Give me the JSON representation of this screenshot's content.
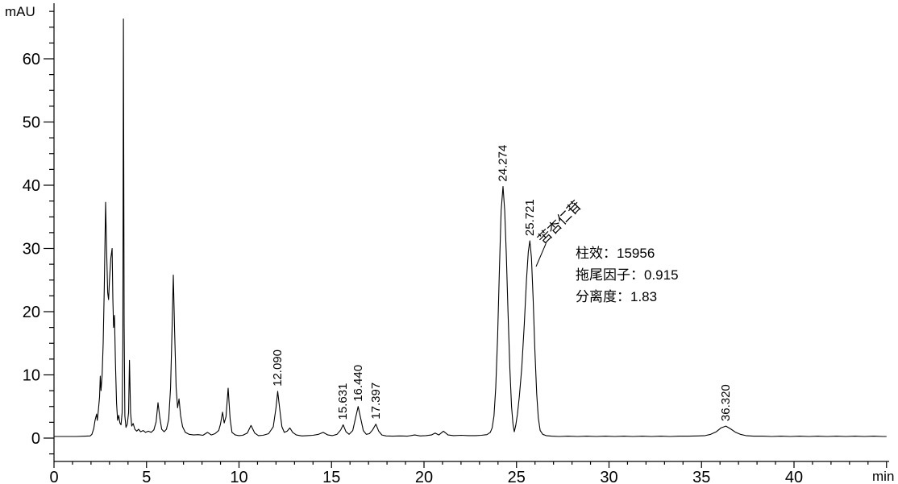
{
  "chart_data": {
    "type": "line",
    "subtype": "hplc-chromatogram",
    "xlabel": "min",
    "ylabel": "mAU",
    "x_ticks": [
      0,
      5,
      10,
      15,
      20,
      25,
      30,
      35,
      40
    ],
    "y_ticks": [
      0,
      10,
      20,
      30,
      40,
      50,
      60
    ],
    "x_minor_step": 1,
    "y_minor_step": 2.5,
    "xlim": [
      0,
      45.1
    ],
    "ylim": [
      -3.7,
      68.7
    ],
    "grid": false,
    "line_color": "#000000",
    "background_color": "#ffffff",
    "labeled_peaks": [
      {
        "label": "12.090",
        "t_min": 12.09,
        "height_mau": 7.4
      },
      {
        "label": "15.631",
        "t_min": 15.631,
        "height_mau": 2.1
      },
      {
        "label": "16.440",
        "t_min": 16.44,
        "height_mau": 5.0
      },
      {
        "label": "17.397",
        "t_min": 17.397,
        "height_mau": 2.2
      },
      {
        "label": "24.274",
        "t_min": 24.274,
        "height_mau": 39.8
      },
      {
        "label": "25.721",
        "t_min": 25.721,
        "height_mau": 31.2
      },
      {
        "label": "36.320",
        "t_min": 36.32,
        "height_mau": 1.9
      }
    ],
    "compound_annotation": {
      "name": "苦杏仁苷",
      "applies_to_peak": "25.721"
    },
    "stats_annotation": [
      "柱效：15956",
      "拖尾因子：0.915",
      "分离度：1.83"
    ],
    "trace": [
      [
        0,
        0.25
      ],
      [
        0.6,
        0.25
      ],
      [
        1.2,
        0.25
      ],
      [
        1.7,
        0.3
      ],
      [
        1.95,
        0.35
      ],
      [
        2.05,
        0.6
      ],
      [
        2.15,
        1.5
      ],
      [
        2.22,
        2.8
      ],
      [
        2.3,
        3.8
      ],
      [
        2.34,
        2.8
      ],
      [
        2.4,
        4.5
      ],
      [
        2.46,
        6.5
      ],
      [
        2.5,
        9.8
      ],
      [
        2.54,
        7.5
      ],
      [
        2.6,
        10
      ],
      [
        2.66,
        15
      ],
      [
        2.72,
        24
      ],
      [
        2.79,
        37.3
      ],
      [
        2.84,
        30
      ],
      [
        2.9,
        23
      ],
      [
        2.95,
        21.9
      ],
      [
        3.0,
        25
      ],
      [
        3.07,
        28.5
      ],
      [
        3.14,
        30
      ],
      [
        3.18,
        22
      ],
      [
        3.22,
        17.5
      ],
      [
        3.27,
        19.4
      ],
      [
        3.32,
        12
      ],
      [
        3.38,
        5.5
      ],
      [
        3.44,
        2.8
      ],
      [
        3.5,
        3.6
      ],
      [
        3.56,
        2.4
      ],
      [
        3.62,
        2.1
      ],
      [
        3.68,
        4
      ],
      [
        3.72,
        15
      ],
      [
        3.75,
        66.3
      ],
      [
        3.79,
        18
      ],
      [
        3.83,
        3.5
      ],
      [
        3.89,
        1.7
      ],
      [
        3.96,
        2.2
      ],
      [
        4.03,
        4
      ],
      [
        4.08,
        12.3
      ],
      [
        4.14,
        4
      ],
      [
        4.2,
        1.9
      ],
      [
        4.28,
        2.3
      ],
      [
        4.37,
        1.4
      ],
      [
        4.47,
        1.1
      ],
      [
        4.57,
        1.4
      ],
      [
        4.68,
        1.0
      ],
      [
        4.82,
        1.2
      ],
      [
        4.95,
        0.9
      ],
      [
        5.1,
        1.1
      ],
      [
        5.25,
        0.9
      ],
      [
        5.4,
        1.3
      ],
      [
        5.52,
        2.6
      ],
      [
        5.62,
        5.6
      ],
      [
        5.72,
        3.2
      ],
      [
        5.82,
        1.4
      ],
      [
        5.95,
        1.0
      ],
      [
        6.08,
        1.4
      ],
      [
        6.2,
        3
      ],
      [
        6.3,
        8
      ],
      [
        6.38,
        17
      ],
      [
        6.45,
        25.8
      ],
      [
        6.52,
        17
      ],
      [
        6.6,
        8
      ],
      [
        6.68,
        4.8
      ],
      [
        6.76,
        6.2
      ],
      [
        6.84,
        3.6
      ],
      [
        6.95,
        1.8
      ],
      [
        7.1,
        0.9
      ],
      [
        7.3,
        0.6
      ],
      [
        7.55,
        0.5
      ],
      [
        7.8,
        0.55
      ],
      [
        8.05,
        0.45
      ],
      [
        8.3,
        0.9
      ],
      [
        8.5,
        0.5
      ],
      [
        8.7,
        0.7
      ],
      [
        8.9,
        1.2
      ],
      [
        9.0,
        2.2
      ],
      [
        9.11,
        4.1
      ],
      [
        9.2,
        2.4
      ],
      [
        9.3,
        3.4
      ],
      [
        9.41,
        7.9
      ],
      [
        9.52,
        3
      ],
      [
        9.62,
        0.9
      ],
      [
        9.8,
        0.5
      ],
      [
        10.0,
        0.4
      ],
      [
        10.2,
        0.45
      ],
      [
        10.45,
        0.8
      ],
      [
        10.65,
        2.0
      ],
      [
        10.85,
        0.8
      ],
      [
        11.05,
        0.4
      ],
      [
        11.3,
        0.45
      ],
      [
        11.6,
        0.7
      ],
      [
        11.85,
        1.8
      ],
      [
        12.0,
        4.8
      ],
      [
        12.09,
        7.4
      ],
      [
        12.2,
        4.6
      ],
      [
        12.32,
        1.8
      ],
      [
        12.45,
        0.9
      ],
      [
        12.6,
        1.1
      ],
      [
        12.75,
        1.6
      ],
      [
        12.9,
        0.9
      ],
      [
        13.1,
        0.5
      ],
      [
        13.4,
        0.35
      ],
      [
        13.7,
        0.4
      ],
      [
        14.0,
        0.45
      ],
      [
        14.3,
        0.6
      ],
      [
        14.55,
        0.9
      ],
      [
        14.8,
        0.5
      ],
      [
        15.05,
        0.4
      ],
      [
        15.3,
        0.6
      ],
      [
        15.5,
        1.3
      ],
      [
        15.63,
        2.1
      ],
      [
        15.78,
        1.0
      ],
      [
        15.95,
        0.6
      ],
      [
        16.15,
        1.2
      ],
      [
        16.3,
        3.2
      ],
      [
        16.44,
        5.0
      ],
      [
        16.58,
        3.1
      ],
      [
        16.72,
        1.2
      ],
      [
        16.88,
        0.6
      ],
      [
        17.05,
        0.7
      ],
      [
        17.22,
        1.3
      ],
      [
        17.4,
        2.2
      ],
      [
        17.55,
        1.1
      ],
      [
        17.72,
        0.5
      ],
      [
        17.95,
        0.35
      ],
      [
        18.3,
        0.3
      ],
      [
        18.7,
        0.35
      ],
      [
        19.1,
        0.3
      ],
      [
        19.5,
        0.5
      ],
      [
        19.8,
        0.35
      ],
      [
        20.1,
        0.4
      ],
      [
        20.4,
        0.5
      ],
      [
        20.6,
        0.8
      ],
      [
        20.8,
        0.5
      ],
      [
        21.05,
        1.1
      ],
      [
        21.3,
        0.5
      ],
      [
        21.6,
        0.4
      ],
      [
        22.0,
        0.45
      ],
      [
        22.4,
        0.4
      ],
      [
        22.8,
        0.4
      ],
      [
        23.1,
        0.45
      ],
      [
        23.4,
        0.55
      ],
      [
        23.58,
        0.9
      ],
      [
        23.68,
        1.6
      ],
      [
        23.78,
        3.5
      ],
      [
        23.88,
        8
      ],
      [
        23.98,
        16
      ],
      [
        24.08,
        27
      ],
      [
        24.17,
        36
      ],
      [
        24.27,
        39.8
      ],
      [
        24.36,
        36
      ],
      [
        24.45,
        29
      ],
      [
        24.54,
        20
      ],
      [
        24.64,
        11
      ],
      [
        24.73,
        5
      ],
      [
        24.81,
        2.2
      ],
      [
        24.88,
        1.0
      ],
      [
        24.96,
        2.0
      ],
      [
        25.05,
        3.8
      ],
      [
        25.15,
        6.5
      ],
      [
        25.28,
        11
      ],
      [
        25.42,
        18
      ],
      [
        25.54,
        25
      ],
      [
        25.64,
        29.5
      ],
      [
        25.72,
        31.2
      ],
      [
        25.81,
        28.5
      ],
      [
        25.9,
        22
      ],
      [
        25.99,
        14
      ],
      [
        26.09,
        7
      ],
      [
        26.18,
        3.2
      ],
      [
        26.28,
        1.2
      ],
      [
        26.42,
        0.6
      ],
      [
        26.6,
        0.4
      ],
      [
        26.9,
        0.3
      ],
      [
        27.3,
        0.25
      ],
      [
        27.8,
        0.3
      ],
      [
        28.3,
        0.25
      ],
      [
        28.8,
        0.3
      ],
      [
        29.3,
        0.25
      ],
      [
        29.8,
        0.3
      ],
      [
        30.3,
        0.25
      ],
      [
        30.8,
        0.3
      ],
      [
        31.3,
        0.25
      ],
      [
        31.8,
        0.3
      ],
      [
        32.3,
        0.25
      ],
      [
        32.8,
        0.3
      ],
      [
        33.3,
        0.25
      ],
      [
        33.8,
        0.3
      ],
      [
        34.3,
        0.3
      ],
      [
        34.8,
        0.35
      ],
      [
        35.2,
        0.4
      ],
      [
        35.5,
        0.6
      ],
      [
        35.8,
        1.0
      ],
      [
        36.05,
        1.6
      ],
      [
        36.32,
        1.9
      ],
      [
        36.6,
        1.4
      ],
      [
        36.85,
        0.9
      ],
      [
        37.1,
        0.6
      ],
      [
        37.4,
        0.4
      ],
      [
        37.8,
        0.3
      ],
      [
        38.3,
        0.3
      ],
      [
        38.8,
        0.25
      ],
      [
        39.3,
        0.3
      ],
      [
        39.8,
        0.25
      ],
      [
        40.3,
        0.3
      ],
      [
        40.8,
        0.25
      ],
      [
        41.3,
        0.3
      ],
      [
        41.8,
        0.25
      ],
      [
        42.3,
        0.3
      ],
      [
        42.8,
        0.25
      ],
      [
        43.3,
        0.3
      ],
      [
        43.8,
        0.25
      ],
      [
        44.3,
        0.3
      ],
      [
        44.8,
        0.25
      ],
      [
        45.0,
        0.25
      ]
    ]
  }
}
